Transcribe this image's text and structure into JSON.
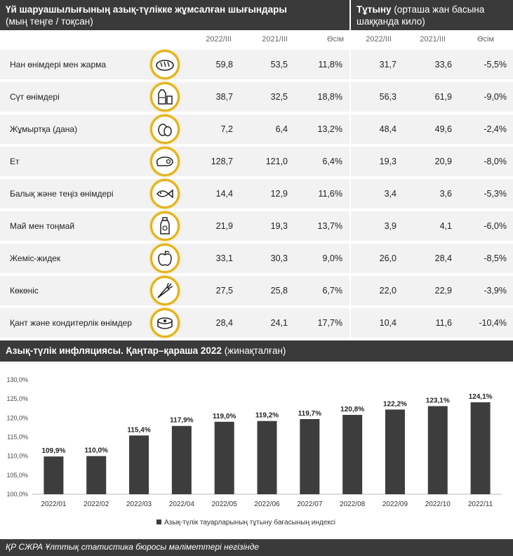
{
  "header_left": {
    "title": "Үй шаруашылығының азық-түлікке жұмсалған шығындары",
    "subtitle": "(мың теңге / тоқсан)"
  },
  "header_right": {
    "title": "Тұтыну",
    "title_rest": " (орташа жан басына",
    "subtitle": "шаққанда кило)"
  },
  "columns": {
    "exp_2022": "2022/III",
    "exp_2021": "2021/III",
    "exp_growth": "Өсім",
    "cons_2022": "2022/III",
    "cons_2021": "2021/III",
    "cons_growth": "Өсім"
  },
  "rows": [
    {
      "label": "Нан өнімдері мен жарма",
      "icon": "bread-icon",
      "exp_2022": "59,8",
      "exp_2021": "53,5",
      "exp_growth": "11,8%",
      "cons_2022": "31,7",
      "cons_2021": "33,6",
      "cons_growth": "-5,5%"
    },
    {
      "label": "Сүт өнімдері",
      "icon": "milk-icon",
      "exp_2022": "38,7",
      "exp_2021": "32,5",
      "exp_growth": "18,8%",
      "cons_2022": "56,3",
      "cons_2021": "61,9",
      "cons_growth": "-9,0%"
    },
    {
      "label": "Жұмыртқа (дана)",
      "icon": "eggs-icon",
      "exp_2022": "7,2",
      "exp_2021": "6,4",
      "exp_growth": "13,2%",
      "cons_2022": "48,4",
      "cons_2021": "49,6",
      "cons_growth": "-2,4%"
    },
    {
      "label": "Ет",
      "icon": "meat-icon",
      "exp_2022": "128,7",
      "exp_2021": "121,0",
      "exp_growth": "6,4%",
      "cons_2022": "19,3",
      "cons_2021": "20,9",
      "cons_growth": "-8,0%"
    },
    {
      "label": "Балық және теңіз өнімдері",
      "icon": "fish-icon",
      "exp_2022": "14,4",
      "exp_2021": "12,9",
      "exp_growth": "11,6%",
      "cons_2022": "3,4",
      "cons_2021": "3,6",
      "cons_growth": "-5,3%"
    },
    {
      "label": "Май мен тоңмай",
      "icon": "oil-bottle-icon",
      "exp_2022": "21,9",
      "exp_2021": "19,3",
      "exp_growth": "13,7%",
      "cons_2022": "3,9",
      "cons_2021": "4,1",
      "cons_growth": "-6,0%"
    },
    {
      "label": "Жеміс-жидек",
      "icon": "apple-icon",
      "exp_2022": "33,1",
      "exp_2021": "30,3",
      "exp_growth": "9,0%",
      "cons_2022": "26,0",
      "cons_2021": "28,4",
      "cons_growth": "-8,5%"
    },
    {
      "label": "Көкөніс",
      "icon": "carrot-icon",
      "exp_2022": "27,5",
      "exp_2021": "25,8",
      "exp_growth": "6,7%",
      "cons_2022": "22,0",
      "cons_2021": "22,9",
      "cons_growth": "-3,9%"
    },
    {
      "label": "Қант және кондитерлік өнімдер",
      "icon": "cake-icon",
      "exp_2022": "28,4",
      "exp_2021": "24,1",
      "exp_growth": "17,7%",
      "cons_2022": "10,4",
      "cons_2021": "11,6",
      "cons_growth": "-10,4%"
    }
  ],
  "chart_header": {
    "title_bold": "Азық-түлік инфляциясы. Қаңтар–қараша 2022",
    "title_rest": " (жинақталған)"
  },
  "chart_data": {
    "type": "bar",
    "categories": [
      "2022/01",
      "2022/02",
      "2022/03",
      "2022/04",
      "2022/05",
      "2022/06",
      "2022/07",
      "2022/08",
      "2022/09",
      "2022/10",
      "2022/11"
    ],
    "series": [
      {
        "name": "Азық-түлік тауарларының тұтыну бағасының индексі",
        "values": [
          109.9,
          110.0,
          115.4,
          117.9,
          119.0,
          119.2,
          119.7,
          120.8,
          122.2,
          123.1,
          124.1
        ],
        "labels": [
          "109,9%",
          "110,0%",
          "115,4%",
          "117,9%",
          "119,0%",
          "119,2%",
          "119,7%",
          "120,8%",
          "122,2%",
          "123,1%",
          "124,1%"
        ]
      }
    ],
    "ylim": [
      100,
      130
    ],
    "yticks": [
      100,
      105,
      110,
      115,
      120,
      125,
      130
    ],
    "ytick_labels": [
      "100,0%",
      "105,0%",
      "110,0%",
      "115,0%",
      "120,0%",
      "125,0%",
      "130,0%"
    ],
    "legend_position": "bottom",
    "grid": false,
    "bar_color": "#3d3d3d"
  },
  "footer": {
    "source": "ҚР СЖРА Ұлттық статистика бюросы мәліметтері негізінде"
  },
  "colors": {
    "header_bg": "#3a3a3a",
    "row_bg": "#f2f2f2",
    "icon_ring": "#e2b21b"
  }
}
